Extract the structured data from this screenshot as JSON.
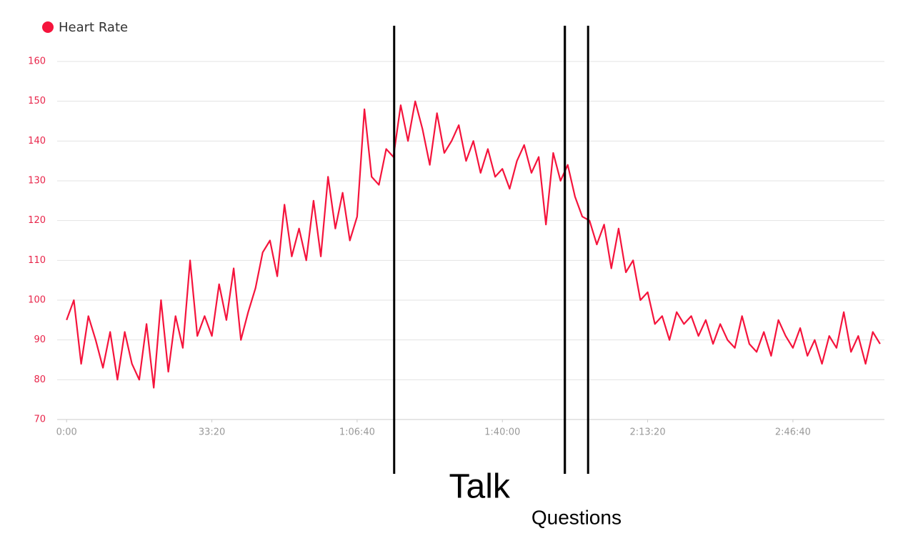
{
  "chart_data": {
    "type": "line",
    "legend_position": "top-left",
    "grid": true,
    "x": [
      0,
      100,
      200,
      300,
      400,
      500,
      600,
      700,
      800,
      900,
      1000,
      1100,
      1200,
      1300,
      1400,
      1500,
      1600,
      1700,
      1800,
      1900,
      2000,
      2100,
      2200,
      2300,
      2400,
      2500,
      2600,
      2700,
      2800,
      2900,
      3000,
      3100,
      3200,
      3300,
      3400,
      3500,
      3600,
      3700,
      3800,
      3900,
      4000,
      4100,
      4200,
      4300,
      4400,
      4500,
      4600,
      4700,
      4800,
      4900,
      5000,
      5100,
      5200,
      5300,
      5400,
      5500,
      5600,
      5700,
      5800,
      5900,
      6000,
      6100,
      6200,
      6300,
      6400,
      6500,
      6600,
      6700,
      6800,
      6900,
      7000,
      7100,
      7200,
      7300,
      7400,
      7500,
      7600,
      7700,
      7800,
      7900,
      8000,
      8100,
      8200,
      8300,
      8400,
      8500,
      8600,
      8700,
      8800,
      8900,
      9000,
      9100,
      9200,
      9300,
      9400,
      9500,
      9600,
      9700,
      9800,
      9900,
      10000,
      10100,
      10200,
      10300,
      10400,
      10500,
      10600,
      10700,
      10800,
      10900,
      11000,
      11100,
      11200
    ],
    "series": [
      {
        "name": "Heart Rate",
        "color": "#f5143c",
        "values": [
          95,
          100,
          84,
          96,
          90,
          83,
          92,
          80,
          92,
          84,
          80,
          94,
          78,
          100,
          82,
          96,
          88,
          110,
          91,
          96,
          91,
          104,
          95,
          108,
          90,
          97,
          103,
          112,
          115,
          106,
          124,
          111,
          118,
          110,
          125,
          111,
          131,
          118,
          127,
          115,
          121,
          148,
          131,
          129,
          138,
          136,
          149,
          140,
          150,
          143,
          134,
          147,
          137,
          140,
          144,
          135,
          140,
          132,
          138,
          131,
          133,
          128,
          135,
          139,
          132,
          136,
          119,
          137,
          130,
          134,
          126,
          121,
          120,
          114,
          119,
          108,
          118,
          107,
          110,
          100,
          102,
          94,
          96,
          90,
          97,
          94,
          96,
          91,
          95,
          89,
          94,
          90,
          88,
          96,
          89,
          87,
          92,
          86,
          95,
          91,
          88,
          93,
          86,
          90,
          84,
          91,
          88,
          97,
          87,
          91,
          84,
          92,
          89
        ]
      }
    ],
    "xlim": [
      -130,
      11260
    ],
    "ylim": [
      70,
      160
    ],
    "yticks": [
      70,
      80,
      90,
      100,
      110,
      120,
      130,
      140,
      150,
      160
    ],
    "xticks": [
      {
        "value": 0,
        "label": "0:00"
      },
      {
        "value": 2000,
        "label": "33:20"
      },
      {
        "value": 4000,
        "label": "1:06:40"
      },
      {
        "value": 6000,
        "label": "1:40:00"
      },
      {
        "value": 8000,
        "label": "2:13:20"
      },
      {
        "value": 10000,
        "label": "2:46:40"
      }
    ],
    "annotations": [
      {
        "text": "Talk",
        "start": 4510,
        "end": 6860
      },
      {
        "text": "Questions",
        "start": 6860,
        "end": 7180
      }
    ]
  }
}
